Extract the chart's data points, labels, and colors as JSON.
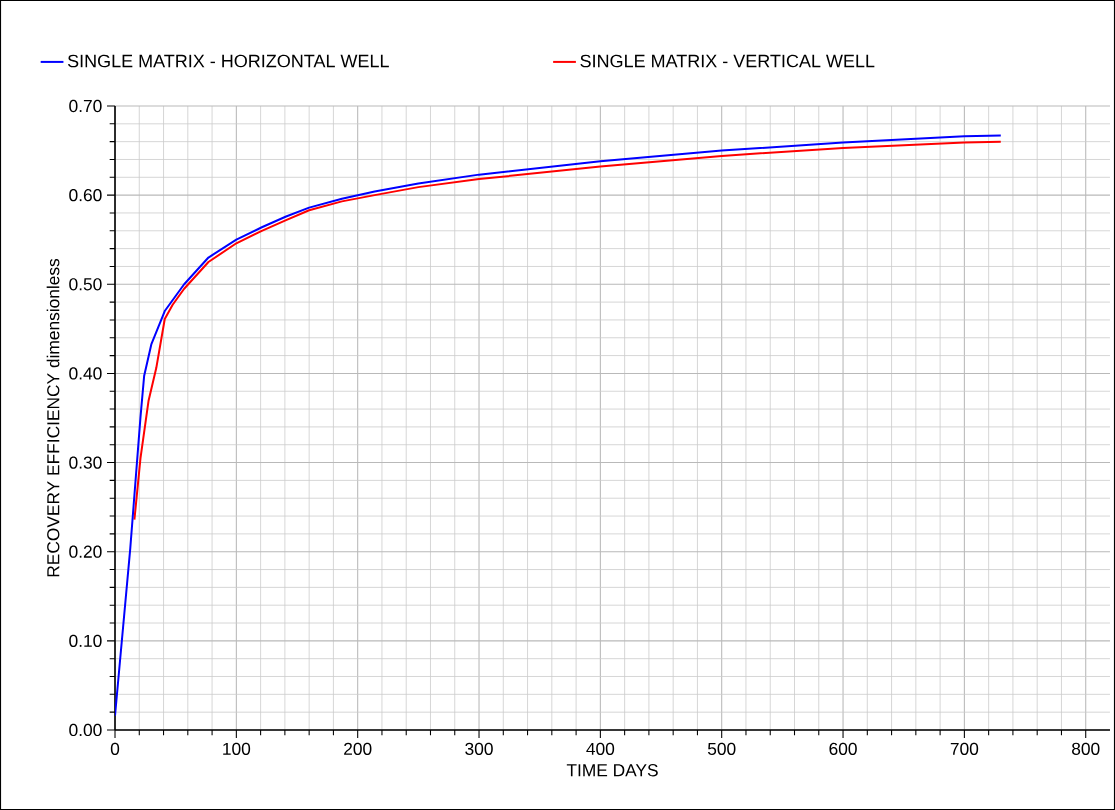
{
  "chart_data": {
    "type": "line",
    "xlabel": "TIME  DAYS",
    "ylabel": "RECOVERY EFFICIENCY  dimensionless",
    "series": [
      {
        "name": "SINGLE MATRIX - HORIZONTAL WELL",
        "color": "#0000ff",
        "x": [
          0,
          12.6,
          21,
          24,
          30,
          41,
          57,
          77,
          100,
          121,
          141,
          160,
          187,
          214,
          250,
          300,
          400,
          500,
          600,
          700,
          730
        ],
        "values": [
          0.016,
          0.204,
          0.351,
          0.397,
          0.433,
          0.47,
          0.5,
          0.53,
          0.55,
          0.564,
          0.576,
          0.586,
          0.596,
          0.604,
          0.613,
          0.623,
          0.638,
          0.65,
          0.659,
          0.666,
          0.667
        ]
      },
      {
        "name": "SINGLE MATRIX - VERTICAL WELL",
        "color": "#ff0000",
        "x": [
          16,
          21,
          27.6,
          34,
          41,
          47.5,
          57,
          77,
          100,
          121,
          141,
          160,
          187,
          214,
          250,
          300,
          400,
          500,
          600,
          700,
          730
        ],
        "values": [
          0.236,
          0.305,
          0.369,
          0.406,
          0.461,
          0.477,
          0.495,
          0.525,
          0.546,
          0.56,
          0.572,
          0.583,
          0.593,
          0.6,
          0.609,
          0.618,
          0.632,
          0.644,
          0.653,
          0.659,
          0.66
        ]
      }
    ],
    "xlim": [
      0,
      820
    ],
    "ylim": [
      0,
      0.7
    ],
    "xticks": [
      0,
      100,
      200,
      300,
      400,
      500,
      600,
      700,
      800
    ],
    "yticks": [
      {
        "value": 0,
        "label": "0.00"
      },
      {
        "value": 0.1,
        "label": "0.10"
      },
      {
        "value": 0.2,
        "label": "0.20"
      },
      {
        "value": 0.3,
        "label": "0.30"
      },
      {
        "value": 0.4,
        "label": "0.40"
      },
      {
        "value": 0.5,
        "label": "0.50"
      },
      {
        "value": 0.6,
        "label": "0.60"
      },
      {
        "value": 0.7,
        "label": "0.70"
      }
    ],
    "grid": true,
    "legend": "top left",
    "marker": "none",
    "line_style": "solid"
  }
}
